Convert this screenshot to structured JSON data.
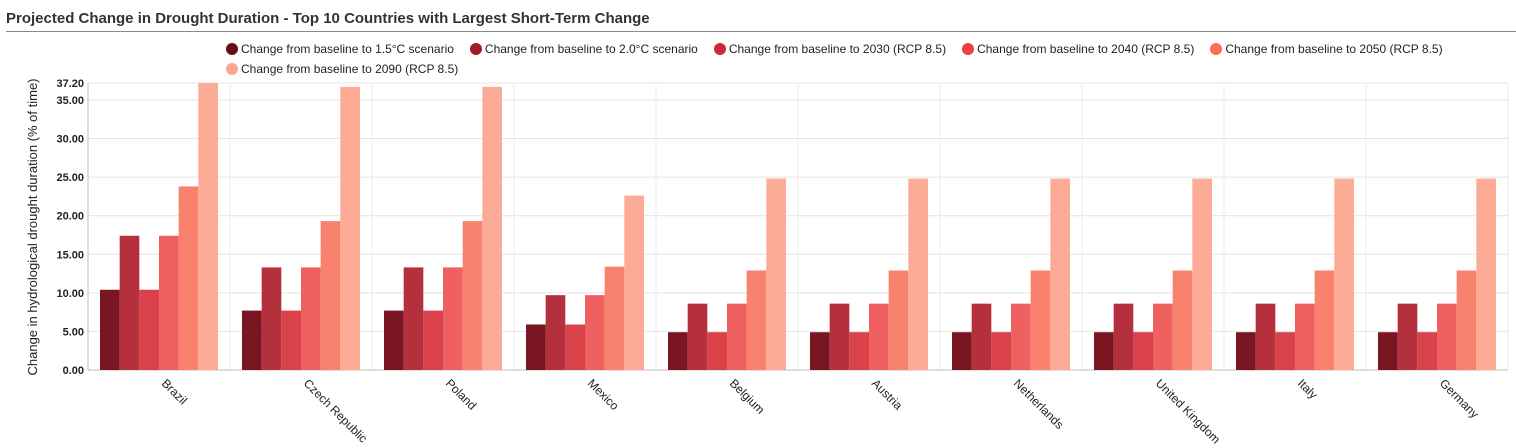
{
  "title": "Projected Change in Drought Duration - Top 10 Countries with Largest Short-Term Change",
  "chart_data": {
    "type": "bar",
    "title": "Projected Change in Drought Duration - Top 10 Countries with Largest Short-Term Change",
    "xlabel": "",
    "ylabel": "Change in hydrological drought duration (% of time)",
    "ylim": [
      0,
      37.2
    ],
    "yticks": [
      "0.00",
      "5.00",
      "10.00",
      "15.00",
      "20.00",
      "25.00",
      "30.00",
      "35.00",
      "37.20"
    ],
    "grid": true,
    "legend_position": "top",
    "categories": [
      "Brazil",
      "Czech Republic",
      "Poland",
      "Mexico",
      "Belgium",
      "Austria",
      "Netherlands",
      "United Kingdom",
      "Italy",
      "Germany"
    ],
    "series": [
      {
        "name": "Change from baseline to 1.5°C scenario",
        "color": "#7a1522",
        "legend_color": "#6b0f17",
        "values": [
          10.4,
          7.7,
          7.7,
          5.9,
          4.9,
          4.9,
          4.9,
          4.9,
          4.9,
          4.9
        ]
      },
      {
        "name": "Change from baseline to 2.0°C scenario",
        "color": "#b5303d",
        "legend_color": "#a11c26",
        "values": [
          17.4,
          13.3,
          13.3,
          9.7,
          8.6,
          8.6,
          8.6,
          8.6,
          8.6,
          8.6
        ]
      },
      {
        "name": "Change from baseline to 2030 (RCP 8.5)",
        "color": "#d9424a",
        "legend_color": "#cc2a36",
        "values": [
          10.4,
          7.7,
          7.7,
          5.9,
          4.9,
          4.9,
          4.9,
          4.9,
          4.9,
          4.9
        ]
      },
      {
        "name": "Change from baseline to 2040 (RCP 8.5)",
        "color": "#ef6160",
        "legend_color": "#ed4040",
        "values": [
          17.4,
          13.3,
          13.3,
          9.7,
          8.6,
          8.6,
          8.6,
          8.6,
          8.6,
          8.6
        ]
      },
      {
        "name": "Change from baseline to 2050 (RCP 8.5)",
        "color": "#f9826e",
        "legend_color": "#f8705a",
        "values": [
          23.8,
          19.3,
          19.3,
          13.4,
          12.9,
          12.9,
          12.9,
          12.9,
          12.9,
          12.9
        ]
      },
      {
        "name": "Change from baseline to 2090 (RCP 8.5)",
        "color": "#fcac96",
        "legend_color": "#fca58f",
        "values": [
          37.2,
          36.7,
          36.7,
          22.6,
          24.8,
          24.8,
          24.8,
          24.8,
          24.8,
          24.8
        ]
      }
    ]
  }
}
